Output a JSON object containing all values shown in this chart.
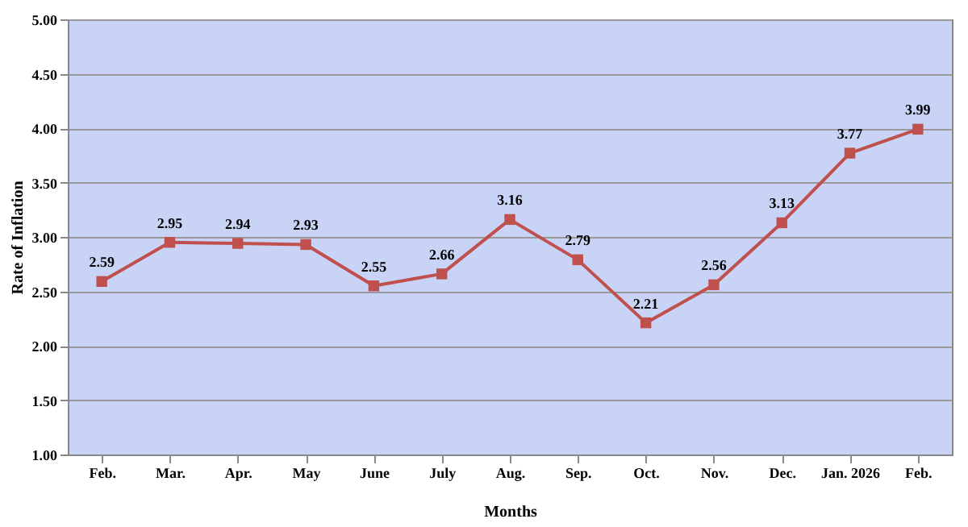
{
  "chart_data": {
    "type": "line",
    "xlabel": "Months",
    "ylabel": "Rate of Inflation",
    "categories": [
      "Feb.",
      "Mar.",
      "Apr.",
      "May",
      "June",
      "July",
      "Aug.",
      "Sep.",
      "Oct.",
      "Nov.",
      "Dec.",
      "Jan. 2026",
      "Feb."
    ],
    "series": [
      {
        "color": "#c0504d",
        "values": [
          2.59,
          2.95,
          2.94,
          2.93,
          2.55,
          2.66,
          3.16,
          2.79,
          2.21,
          2.56,
          3.13,
          3.77,
          3.99
        ]
      }
    ],
    "ylim": [
      1,
      5
    ],
    "yticks": [
      {
        "value": 1,
        "label": "1.00"
      },
      {
        "value": 1.5,
        "label": "1.50"
      },
      {
        "value": 2,
        "label": "2.00"
      },
      {
        "value": 2.5,
        "label": "2.50"
      },
      {
        "value": 3,
        "label": "3.00"
      },
      {
        "value": 3.5,
        "label": "3.50"
      },
      {
        "value": 4,
        "label": "4.00"
      },
      {
        "value": 4.5,
        "label": "4.50"
      },
      {
        "value": 5,
        "label": "5.00"
      }
    ],
    "grid": "y",
    "marker": "square",
    "line_style": "solid",
    "data_labels": true
  }
}
